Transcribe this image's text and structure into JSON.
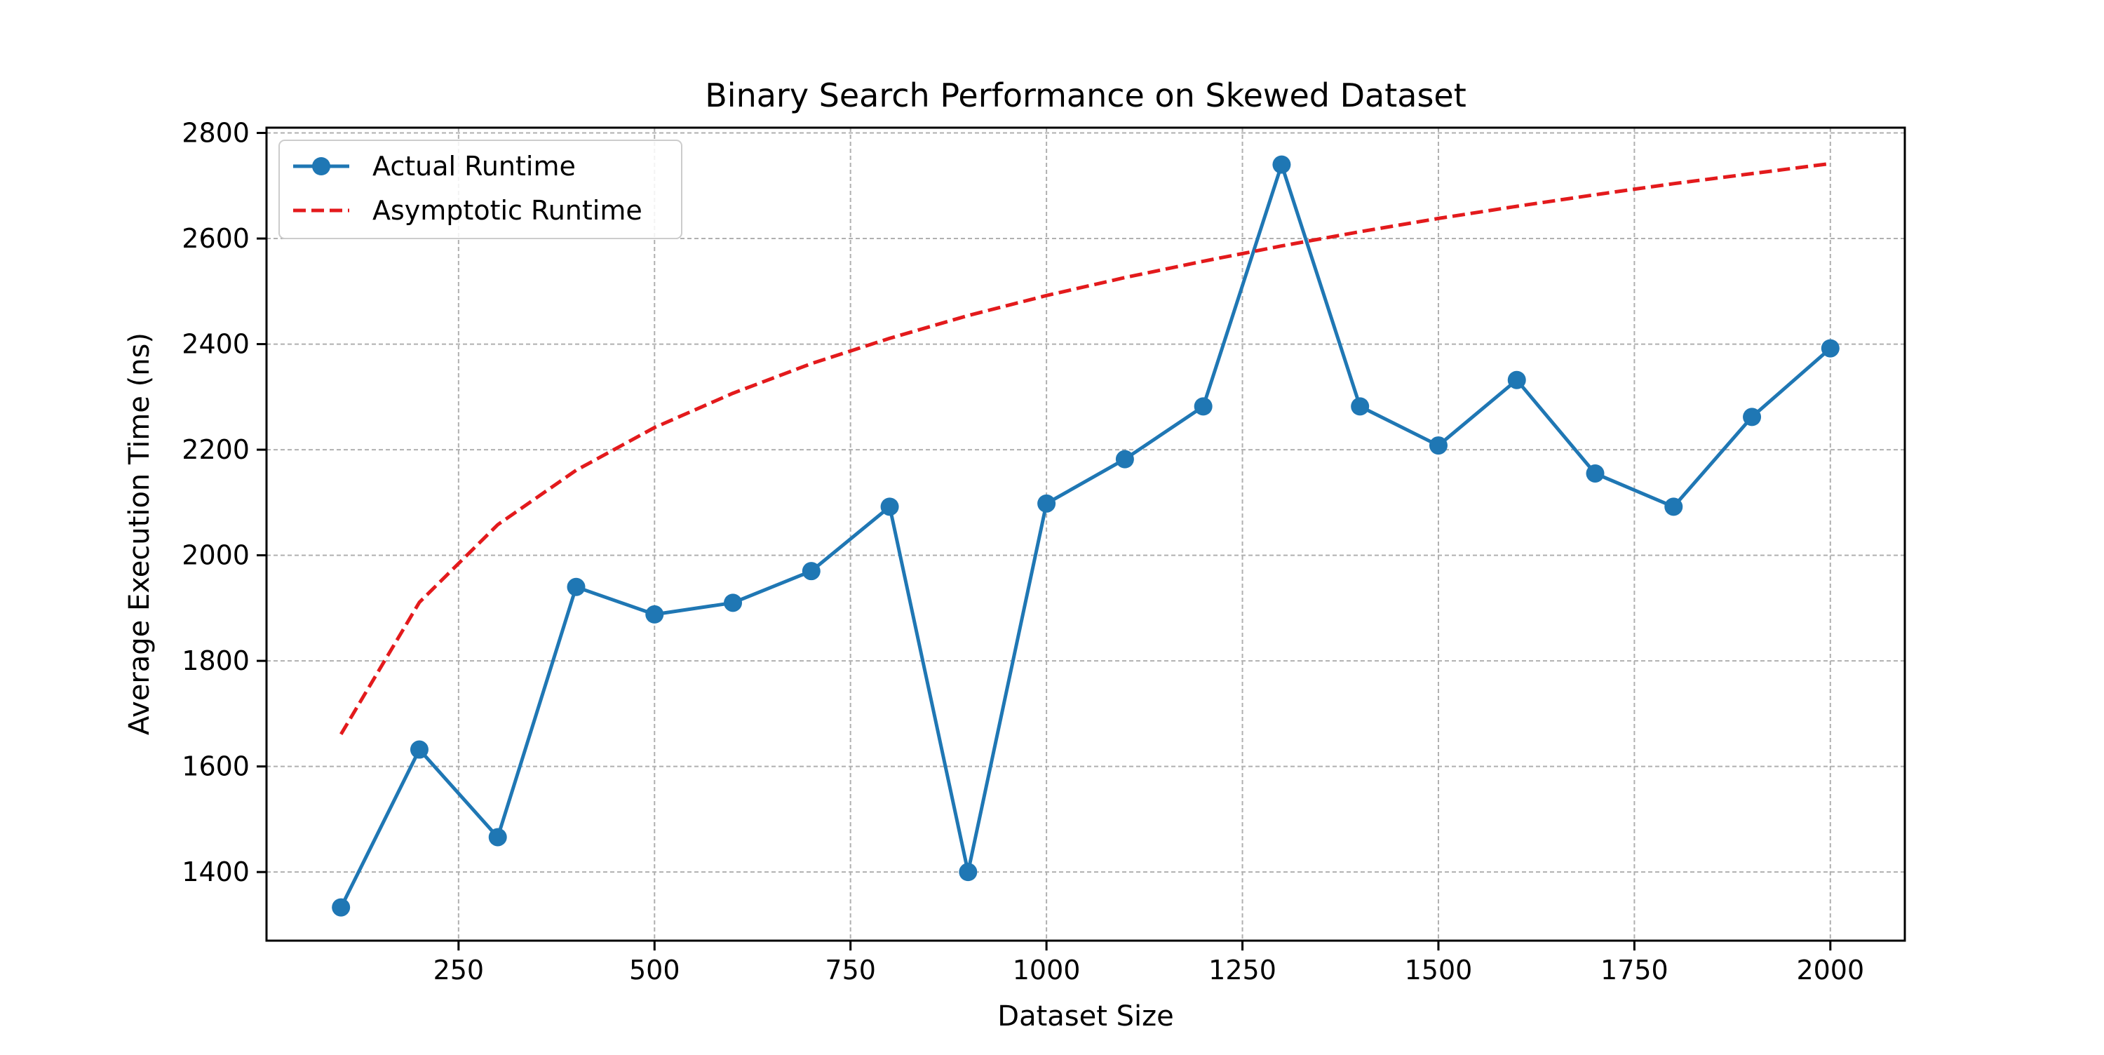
{
  "chart_data": {
    "type": "line",
    "title": "Binary Search Performance on Skewed Dataset",
    "xlabel": "Dataset Size",
    "ylabel": "Average Execution Time (ns)",
    "xlim": [
      5,
      2095
    ],
    "ylim": [
      1270,
      2810
    ],
    "xticks": [
      250,
      500,
      750,
      1000,
      1250,
      1500,
      1750,
      2000
    ],
    "yticks": [
      1400,
      1600,
      1800,
      2000,
      2200,
      2400,
      2600,
      2800
    ],
    "grid": true,
    "legend_position": "upper left",
    "x": [
      100,
      200,
      300,
      400,
      500,
      600,
      700,
      800,
      900,
      1000,
      1100,
      1200,
      1300,
      1400,
      1500,
      1600,
      1700,
      1800,
      1900,
      2000
    ],
    "series": [
      {
        "name": "Actual Runtime",
        "style": "solid",
        "marker": "circle",
        "color": "#1f77b4",
        "values": [
          1333,
          1632,
          1466,
          1940,
          1888,
          1910,
          1970,
          2092,
          1400,
          2098,
          2182,
          2282,
          2740,
          2282,
          2208,
          2332,
          2155,
          2092,
          2262,
          2392
        ]
      },
      {
        "name": "Asymptotic Runtime",
        "style": "dashed",
        "marker": "none",
        "color": "#e31a1c",
        "values": [
          1661,
          1911,
          2058,
          2161,
          2242,
          2307,
          2363,
          2411,
          2454,
          2492,
          2526,
          2557,
          2586,
          2613,
          2638,
          2661,
          2683,
          2704,
          2723,
          2742
        ]
      }
    ]
  }
}
